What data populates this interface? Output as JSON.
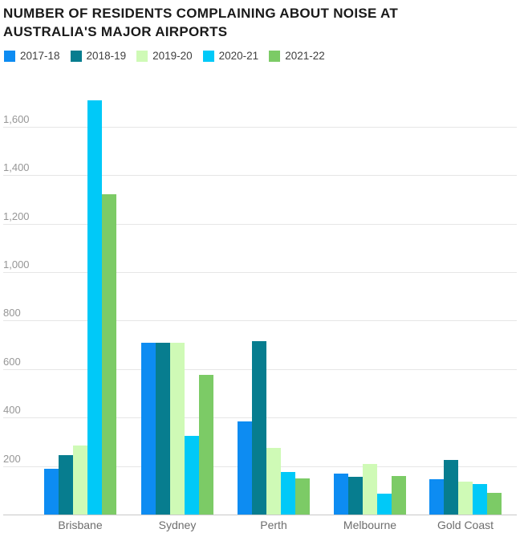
{
  "title_lines": [
    "NUMBER OF RESIDENTS COMPLAINING ABOUT NOISE AT",
    "AUSTRALIA'S MAJOR AIRPORTS"
  ],
  "chart_data": {
    "type": "bar",
    "title": "NUMBER OF RESIDENTS COMPLAINING ABOUT NOISE AT AUSTRALIA'S MAJOR AIRPORTS",
    "categories": [
      "Brisbane",
      "Sydney",
      "Perth",
      "Melbourne",
      "Gold Coast"
    ],
    "series": [
      {
        "name": "2017-18",
        "color": "#0d8cf2",
        "values": [
          190,
          710,
          385,
          170,
          145
        ]
      },
      {
        "name": "2018-19",
        "color": "#077d8f",
        "values": [
          245,
          710,
          715,
          155,
          225
        ]
      },
      {
        "name": "2019-20",
        "color": "#cffab6",
        "values": [
          285,
          710,
          275,
          210,
          135
        ]
      },
      {
        "name": "2020-21",
        "color": "#00c9f8",
        "values": [
          1710,
          325,
          175,
          85,
          125
        ]
      },
      {
        "name": "2021-22",
        "color": "#7ccb66",
        "values": [
          1320,
          575,
          150,
          160,
          90
        ]
      }
    ],
    "xlabel": "",
    "ylabel": "",
    "ylim": [
      0,
      1600
    ],
    "yticks": [
      200,
      400,
      600,
      800,
      1000,
      1200,
      1400,
      1600
    ],
    "ytick_labels": [
      "200",
      "400",
      "600",
      "800",
      "1,000",
      "1,200",
      "1,400",
      "1,600"
    ],
    "grid": "horizontal",
    "legend_position": "top-left",
    "colors": {
      "grid": "#e6e6e6",
      "axis": "#c8c8c8",
      "tick_text": "#969696",
      "category_text": "#6d6d6d",
      "legend_text": "#404040",
      "title_text": "#1a1a1a"
    }
  }
}
